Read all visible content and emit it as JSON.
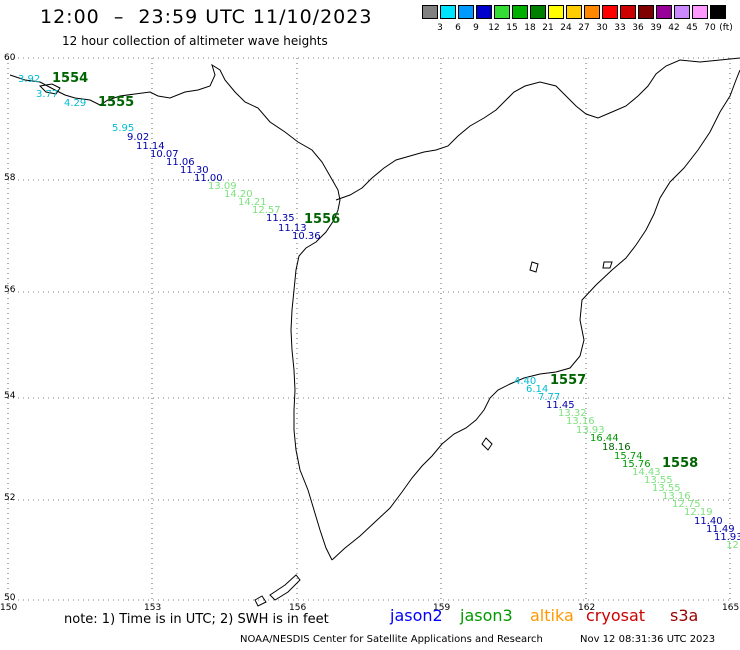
{
  "header": {
    "title": "12:00  –  23:59 UTC 11/10/2023",
    "subtitle": "12 hour collection of altimeter wave heights"
  },
  "legend": {
    "unit": "(ft)",
    "colors": [
      "#808080",
      "#00e5ff",
      "#0099ff",
      "#0000cc",
      "#33dd33",
      "#00b000",
      "#008000",
      "#ffff00",
      "#ffcc00",
      "#ff8800",
      "#ff0000",
      "#cc0000",
      "#800000",
      "#990099",
      "#cc88ff",
      "#ff99ff",
      "#000000"
    ],
    "labels": [
      "3",
      "6",
      "9",
      "12",
      "15",
      "18",
      "21",
      "24",
      "27",
      "30",
      "33",
      "36",
      "39",
      "42",
      "45",
      "70"
    ]
  },
  "axes": {
    "lat_labels": [
      "60",
      "58",
      "56",
      "54",
      "52",
      "50"
    ],
    "lon_labels": [
      "150",
      "153",
      "156",
      "159",
      "162",
      "165"
    ]
  },
  "tracks": [
    {
      "pass": "1554",
      "color": "#006400"
    },
    {
      "pass": "1555",
      "color": "#006400"
    },
    {
      "pass": "1556",
      "color": "#006400"
    },
    {
      "pass": "1557",
      "color": "#006400"
    },
    {
      "pass": "1558",
      "color": "#006400"
    }
  ],
  "points": [
    {
      "v": "3.92",
      "c": "#00bcd4"
    },
    {
      "v": "3.77",
      "c": "#00bcd4"
    },
    {
      "v": "4.29",
      "c": "#00bcd4"
    },
    {
      "v": "5.95",
      "c": "#00bcd4"
    },
    {
      "v": "9.02",
      "c": "#0000aa"
    },
    {
      "v": "11.14",
      "c": "#0000aa"
    },
    {
      "v": "10.07",
      "c": "#0000aa"
    },
    {
      "v": "11.06",
      "c": "#0000aa"
    },
    {
      "v": "11.30",
      "c": "#0000aa"
    },
    {
      "v": "11.00",
      "c": "#0000aa"
    },
    {
      "v": "13.09",
      "c": "#7ee07e"
    },
    {
      "v": "14.20",
      "c": "#7ee07e"
    },
    {
      "v": "14.21",
      "c": "#7ee07e"
    },
    {
      "v": "12.57",
      "c": "#7ee07e"
    },
    {
      "v": "11.35",
      "c": "#0000aa"
    },
    {
      "v": "11.13",
      "c": "#0000aa"
    },
    {
      "v": "10.36",
      "c": "#0000aa"
    },
    {
      "v": "4.40",
      "c": "#00bcd4"
    },
    {
      "v": "6.14",
      "c": "#00bcd4"
    },
    {
      "v": "7.77",
      "c": "#00bcd4"
    },
    {
      "v": "11.45",
      "c": "#0000aa"
    },
    {
      "v": "13.32",
      "c": "#7ee07e"
    },
    {
      "v": "13.16",
      "c": "#7ee07e"
    },
    {
      "v": "13.93",
      "c": "#7ee07e"
    },
    {
      "v": "16.44",
      "c": "#009900"
    },
    {
      "v": "18.16",
      "c": "#006400"
    },
    {
      "v": "15.74",
      "c": "#009900"
    },
    {
      "v": "15.76",
      "c": "#009900"
    },
    {
      "v": "14.43",
      "c": "#7ee07e"
    },
    {
      "v": "13.55",
      "c": "#7ee07e"
    },
    {
      "v": "13.55",
      "c": "#7ee07e"
    },
    {
      "v": "13.16",
      "c": "#7ee07e"
    },
    {
      "v": "12.75",
      "c": "#7ee07e"
    },
    {
      "v": "12.19",
      "c": "#7ee07e"
    },
    {
      "v": "11.40",
      "c": "#0000aa"
    },
    {
      "v": "11.49",
      "c": "#0000aa"
    },
    {
      "v": "11.93",
      "c": "#0000aa"
    },
    {
      "v": "12",
      "c": "#7ee07e"
    }
  ],
  "footer": {
    "note": "note: 1) Time is in UTC; 2) SWH is in feet",
    "satellites": [
      {
        "name": "jason2",
        "color": "#0000ff"
      },
      {
        "name": "jason3",
        "color": "#009900"
      },
      {
        "name": "altika",
        "color": "#ff9900"
      },
      {
        "name": "cryosat",
        "color": "#cc0000"
      },
      {
        "name": "s3a",
        "color": "#990000"
      }
    ],
    "credit": "NOAA/NESDIS Center for Satellite Applications and Research",
    "timestamp": "Nov 12 08:31:36 UTC 2023"
  }
}
